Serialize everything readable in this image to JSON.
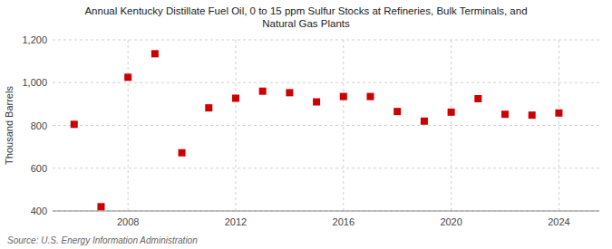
{
  "chart_data": {
    "type": "scatter",
    "title": "Annual Kentucky Distillate Fuel Oil, 0 to 15 ppm Sulfur Stocks at Refineries, Bulk Terminals, and\nNatural Gas Plants",
    "ylabel": "Thousand Barrels",
    "source": "Source: U.S. Energy Information Administration",
    "x": [
      2006,
      2007,
      2008,
      2009,
      2010,
      2011,
      2012,
      2013,
      2014,
      2015,
      2016,
      2017,
      2018,
      2019,
      2020,
      2021,
      2022,
      2023,
      2024
    ],
    "values": [
      805,
      420,
      1025,
      1135,
      672,
      882,
      927,
      960,
      953,
      910,
      935,
      935,
      865,
      820,
      862,
      925,
      852,
      848,
      858
    ],
    "color": "#cc0000",
    "marker": "square",
    "xlim": [
      2005.2,
      2025.5
    ],
    "xticks": [
      2008,
      2012,
      2016,
      2020,
      2024
    ],
    "ylim": [
      400,
      1200
    ],
    "yticks": [
      400,
      600,
      800,
      {
        "value": 1000,
        "label": "1,000"
      },
      {
        "value": 1200,
        "label": "1,200"
      }
    ],
    "grid": true
  }
}
